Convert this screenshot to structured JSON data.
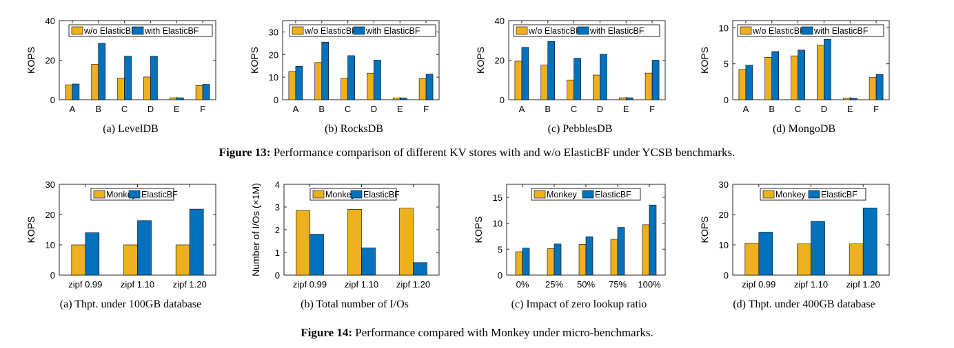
{
  "colors": {
    "series_a": "#EDB120",
    "series_b": "#0072BD",
    "axis": "#262626"
  },
  "figure13": {
    "label": "Figure 13:",
    "text": " Performance comparison of different KV stores with and w/o ElasticBF under YCSB benchmarks."
  },
  "figure14": {
    "label": "Figure 14:",
    "text": " Performance compared with Monkey under micro-benchmarks."
  },
  "chart_data": [
    {
      "type": "bar",
      "caption": "(a)  LevelDB",
      "ylabel": "KOPS",
      "ylim": [
        0,
        40
      ],
      "yticks": [
        0,
        20,
        40
      ],
      "categories": [
        "A",
        "B",
        "C",
        "D",
        "E",
        "F"
      ],
      "legend": "top",
      "series": [
        {
          "name": "w/o ElasticBF",
          "values": [
            7.5,
            18,
            11,
            11.5,
            1,
            7.2
          ]
        },
        {
          "name": "with ElasticBF",
          "values": [
            8,
            28.5,
            22,
            22,
            1,
            7.8
          ]
        }
      ]
    },
    {
      "type": "bar",
      "caption": "(b)  RocksDB",
      "ylabel": "KOPS",
      "ylim": [
        0,
        35
      ],
      "yticks": [
        0,
        10,
        20,
        30
      ],
      "categories": [
        "A",
        "B",
        "C",
        "D",
        "E",
        "F"
      ],
      "legend": "top",
      "series": [
        {
          "name": "w/o ElasticBF",
          "values": [
            12.5,
            16.5,
            9.5,
            11.8,
            0.8,
            9.3
          ]
        },
        {
          "name": "with ElasticBF",
          "values": [
            14.8,
            25.5,
            19.5,
            17.5,
            0.8,
            11.3
          ]
        }
      ]
    },
    {
      "type": "bar",
      "caption": "(c)  PebblesDB",
      "ylabel": "KOPS",
      "ylim": [
        0,
        40
      ],
      "yticks": [
        0,
        20,
        40
      ],
      "categories": [
        "A",
        "B",
        "C",
        "D",
        "E",
        "F"
      ],
      "legend": "top",
      "series": [
        {
          "name": "w/o ElasticBF",
          "values": [
            19.5,
            17.5,
            10,
            12.5,
            1,
            13.5
          ]
        },
        {
          "name": "with ElasticBF",
          "values": [
            26.5,
            29.5,
            21,
            23,
            1,
            20
          ]
        }
      ]
    },
    {
      "type": "bar",
      "caption": "(d)  MongoDB",
      "ylabel": "KOPS",
      "ylim": [
        0,
        11
      ],
      "yticks": [
        0,
        5,
        10
      ],
      "categories": [
        "A",
        "B",
        "C",
        "D",
        "E",
        "F"
      ],
      "legend": "top",
      "series": [
        {
          "name": "w/o ElasticBF",
          "values": [
            4.2,
            5.9,
            6.1,
            7.6,
            0.2,
            3.1
          ]
        },
        {
          "name": "with ElasticBF",
          "values": [
            4.8,
            6.7,
            6.9,
            8.4,
            0.2,
            3.5
          ]
        }
      ]
    },
    {
      "type": "bar",
      "caption": "(a)  Thpt. under 100GB database",
      "ylabel": "KOPS",
      "ylim": [
        0,
        30
      ],
      "yticks": [
        0,
        10,
        20,
        30
      ],
      "categories": [
        "zipf 0.99",
        "zipf 1.10",
        "zipf 1.20"
      ],
      "legend": "top",
      "series": [
        {
          "name": "Monkey",
          "values": [
            10,
            10,
            10
          ]
        },
        {
          "name": "ElasticBF",
          "values": [
            14,
            18,
            21.8
          ]
        }
      ]
    },
    {
      "type": "bar",
      "caption": "(b)  Total number of I/Os",
      "ylabel": "Number of I/Os (×1M)",
      "ylim": [
        0,
        4
      ],
      "yticks": [
        0,
        1,
        2,
        3,
        4
      ],
      "categories": [
        "zipf 0.99",
        "zipf 1.10",
        "zipf 1.20"
      ],
      "legend": "top",
      "series": [
        {
          "name": "Monkey",
          "values": [
            2.85,
            2.9,
            2.95
          ]
        },
        {
          "name": "ElasticBF",
          "values": [
            1.8,
            1.2,
            0.55
          ]
        }
      ]
    },
    {
      "type": "bar",
      "caption": "(c)  Impact of zero lookup ratio",
      "ylabel": "KOPS",
      "ylim": [
        0,
        17.5
      ],
      "yticks": [
        0,
        5,
        10,
        15
      ],
      "categories": [
        "0%",
        "25%",
        "50%",
        "75%",
        "100%"
      ],
      "legend": "top",
      "series": [
        {
          "name": "Monkey",
          "values": [
            4.5,
            5.1,
            5.9,
            6.9,
            9.7
          ]
        },
        {
          "name": "ElasticBF",
          "values": [
            5.2,
            6.0,
            7.4,
            9.2,
            13.5
          ]
        }
      ]
    },
    {
      "type": "bar",
      "caption": "(d)  Thpt. under 400GB database",
      "ylabel": "KOPS",
      "ylim": [
        0,
        30
      ],
      "yticks": [
        0,
        10,
        20,
        30
      ],
      "categories": [
        "zipf 0.99",
        "zipf 1.10",
        "zipf 1.20"
      ],
      "legend": "top",
      "series": [
        {
          "name": "Monkey",
          "values": [
            10.5,
            10.3,
            10.3
          ]
        },
        {
          "name": "ElasticBF",
          "values": [
            14.2,
            17.8,
            22.2
          ]
        }
      ]
    }
  ]
}
